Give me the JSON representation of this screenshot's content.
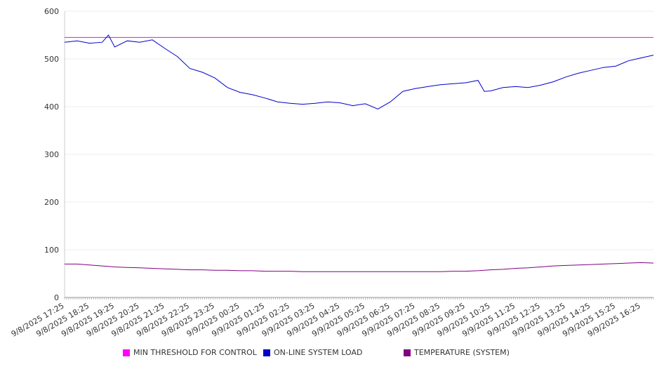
{
  "chart_data": {
    "type": "line",
    "title": "",
    "xlabel": "",
    "ylabel": "",
    "ylim": [
      0,
      600
    ],
    "yticks": [
      0,
      100,
      200,
      300,
      400,
      500,
      600
    ],
    "grid": true,
    "legend_position": "bottom",
    "x_tick_labels": [
      "9/8/2025 17:25",
      "9/8/2025 18:25",
      "9/8/2025 19:25",
      "9/8/2025 20:25",
      "9/8/2025 21:25",
      "9/8/2025 22:25",
      "9/8/2025 23:25",
      "9/9/2025 00:25",
      "9/9/2025 01:25",
      "9/9/2025 02:25",
      "9/9/2025 03:25",
      "9/9/2025 04:25",
      "9/9/2025 05:25",
      "9/9/2025 06:25",
      "9/9/2025 07:25",
      "9/9/2025 08:25",
      "9/9/2025 09:25",
      "9/9/2025 10:25",
      "9/9/2025 11:25",
      "9/9/2025 12:25",
      "9/9/2025 13:25",
      "9/9/2025 14:25",
      "9/9/2025 15:25",
      "9/9/2025 16:25"
    ],
    "x": [
      "9/8/2025 17:25",
      "9/8/2025 17:55",
      "9/8/2025 18:25",
      "9/8/2025 18:55",
      "9/8/2025 19:10",
      "9/8/2025 19:25",
      "9/8/2025 19:55",
      "9/8/2025 20:25",
      "9/8/2025 20:55",
      "9/8/2025 21:25",
      "9/8/2025 21:55",
      "9/8/2025 22:25",
      "9/8/2025 22:55",
      "9/8/2025 23:25",
      "9/8/2025 23:55",
      "9/9/2025 00:25",
      "9/9/2025 00:55",
      "9/9/2025 01:25",
      "9/9/2025 01:55",
      "9/9/2025 02:25",
      "9/9/2025 02:55",
      "9/9/2025 03:25",
      "9/9/2025 03:55",
      "9/9/2025 04:25",
      "9/9/2025 04:55",
      "9/9/2025 05:25",
      "9/9/2025 05:55",
      "9/9/2025 06:25",
      "9/9/2025 06:55",
      "9/9/2025 07:25",
      "9/9/2025 07:55",
      "9/9/2025 08:25",
      "9/9/2025 08:55",
      "9/9/2025 09:25",
      "9/9/2025 09:55",
      "9/9/2025 10:10",
      "9/9/2025 10:25",
      "9/9/2025 10:55",
      "9/9/2025 11:25",
      "9/9/2025 11:55",
      "9/9/2025 12:25",
      "9/9/2025 12:55",
      "9/9/2025 13:25",
      "9/9/2025 13:55",
      "9/9/2025 14:25",
      "9/9/2025 14:55",
      "9/9/2025 15:25",
      "9/9/2025 15:55",
      "9/9/2025 16:25",
      "9/9/2025 16:55"
    ],
    "series": [
      {
        "name": "MIN THRESHOLD FOR CONTROL",
        "color": "#ff00ff",
        "values": [
          545,
          545,
          545,
          545,
          545,
          545,
          545,
          545,
          545,
          545,
          545,
          545,
          545,
          545,
          545,
          545,
          545,
          545,
          545,
          545,
          545,
          545,
          545,
          545,
          545,
          545,
          545,
          545,
          545,
          545,
          545,
          545,
          545,
          545,
          545,
          545,
          545,
          545,
          545,
          545,
          545,
          545,
          545,
          545,
          545,
          545,
          545,
          545,
          545,
          545
        ]
      },
      {
        "name": "ON-LINE SYSTEM LOAD",
        "color": "#0000cc",
        "values": [
          535,
          538,
          533,
          535,
          550,
          525,
          538,
          535,
          540,
          522,
          505,
          480,
          472,
          460,
          440,
          430,
          425,
          418,
          410,
          407,
          405,
          407,
          410,
          408,
          402,
          406,
          395,
          410,
          432,
          438,
          442,
          446,
          448,
          450,
          455,
          432,
          433,
          440,
          442,
          440,
          445,
          452,
          462,
          470,
          476,
          482,
          485,
          496,
          502,
          508
        ]
      },
      {
        "name": "TEMPERATURE (SYSTEM)",
        "color": "#800080",
        "values": [
          70,
          70,
          68,
          66,
          65,
          64,
          63,
          62,
          61,
          60,
          59,
          58,
          58,
          57,
          57,
          56,
          56,
          55,
          55,
          55,
          54,
          54,
          54,
          54,
          54,
          54,
          54,
          54,
          54,
          54,
          54,
          54,
          55,
          55,
          56,
          57,
          58,
          59,
          61,
          62,
          64,
          66,
          67,
          68,
          69,
          70,
          71,
          72,
          73,
          72
        ]
      }
    ]
  }
}
